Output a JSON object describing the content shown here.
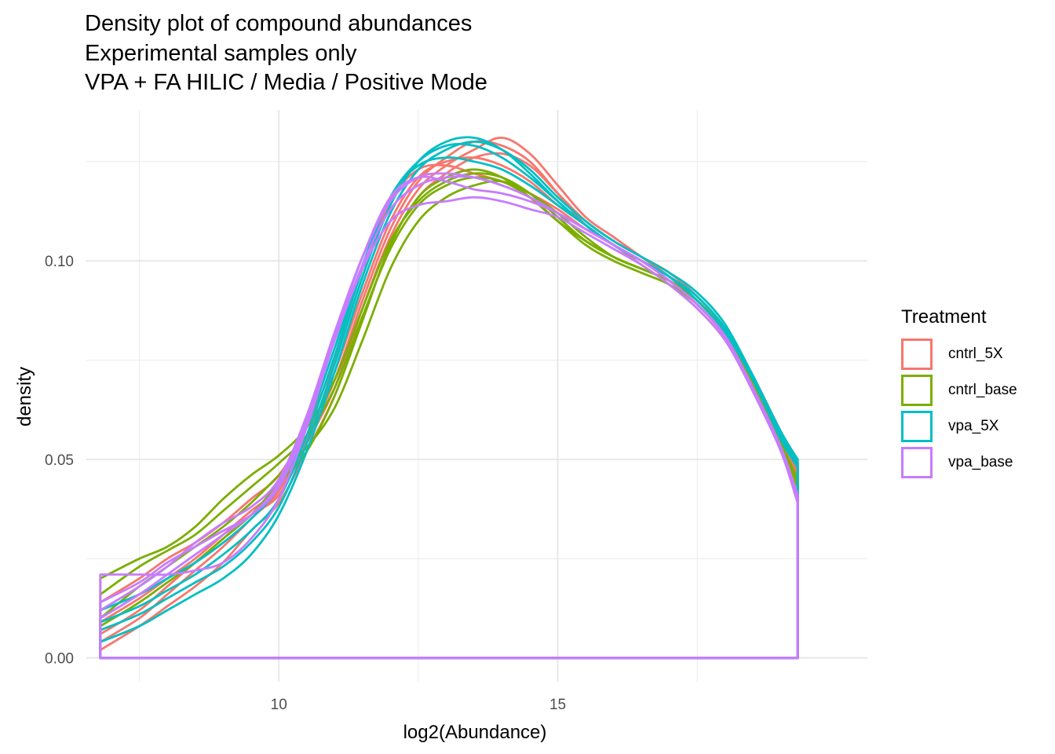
{
  "chart_data": {
    "type": "line",
    "title_lines": [
      "Density plot of compound abundances",
      "Experimental samples only",
      "VPA + FA HILIC / Media / Positive Mode"
    ],
    "xlabel": "log2(Abundance)",
    "ylabel": "density",
    "xlim": [
      6.55,
      20.55
    ],
    "ylim": [
      -0.006,
      0.138
    ],
    "x_ticks": [
      10,
      15
    ],
    "x_tick_labels": [
      "10",
      "15"
    ],
    "y_ticks": [
      0.0,
      0.05,
      0.1
    ],
    "y_tick_labels": [
      "0.00",
      "0.05",
      "0.10"
    ],
    "grid": true,
    "legend_position": "right",
    "legend": {
      "title": "Treatment",
      "items": [
        {
          "label": "cntrl_5X",
          "color": "#F8766D"
        },
        {
          "label": "cntrl_base",
          "color": "#7CAE00"
        },
        {
          "label": "vpa_5X",
          "color": "#00BFC4"
        },
        {
          "label": "vpa_base",
          "color": "#C77CFF"
        }
      ]
    },
    "x": [
      6.8,
      7.5,
      8.0,
      8.5,
      9.0,
      9.5,
      10.0,
      10.5,
      11.0,
      11.5,
      12.0,
      12.5,
      13.0,
      13.5,
      14.0,
      14.5,
      15.0,
      15.5,
      16.0,
      16.5,
      17.0,
      17.5,
      18.0,
      18.5,
      19.0,
      19.3
    ],
    "series": [
      {
        "group": "cntrl_5X",
        "values": [
          0.002,
          0.008,
          0.013,
          0.018,
          0.024,
          0.032,
          0.039,
          0.052,
          0.066,
          0.085,
          0.104,
          0.116,
          0.122,
          0.126,
          0.127,
          0.124,
          0.117,
          0.11,
          0.105,
          0.101,
          0.097,
          0.091,
          0.083,
          0.071,
          0.057,
          0.05
        ]
      },
      {
        "group": "cntrl_5X",
        "values": [
          0.004,
          0.01,
          0.016,
          0.022,
          0.028,
          0.035,
          0.042,
          0.055,
          0.07,
          0.09,
          0.108,
          0.12,
          0.126,
          0.13,
          0.129,
          0.125,
          0.117,
          0.109,
          0.104,
          0.1,
          0.095,
          0.089,
          0.081,
          0.069,
          0.055,
          0.048
        ]
      },
      {
        "group": "cntrl_5X",
        "values": [
          0.009,
          0.015,
          0.02,
          0.025,
          0.031,
          0.037,
          0.043,
          0.056,
          0.072,
          0.092,
          0.11,
          0.121,
          0.125,
          0.126,
          0.124,
          0.12,
          0.114,
          0.109,
          0.104,
          0.1,
          0.095,
          0.089,
          0.081,
          0.069,
          0.055,
          0.047
        ]
      },
      {
        "group": "cntrl_5X",
        "values": [
          0.014,
          0.02,
          0.025,
          0.029,
          0.034,
          0.04,
          0.046,
          0.058,
          0.075,
          0.096,
          0.115,
          0.123,
          0.124,
          0.122,
          0.12,
          0.117,
          0.113,
          0.108,
          0.104,
          0.099,
          0.094,
          0.088,
          0.08,
          0.068,
          0.054,
          0.046
        ]
      },
      {
        "group": "cntrl_5X",
        "values": [
          0.006,
          0.012,
          0.018,
          0.024,
          0.03,
          0.036,
          0.041,
          0.054,
          0.068,
          0.088,
          0.106,
          0.118,
          0.124,
          0.128,
          0.131,
          0.127,
          0.119,
          0.111,
          0.106,
          0.101,
          0.096,
          0.09,
          0.082,
          0.07,
          0.056,
          0.049
        ]
      },
      {
        "group": "cntrl_base",
        "values": [
          0.02,
          0.025,
          0.028,
          0.033,
          0.04,
          0.046,
          0.051,
          0.058,
          0.07,
          0.088,
          0.105,
          0.115,
          0.12,
          0.122,
          0.121,
          0.117,
          0.111,
          0.105,
          0.101,
          0.098,
          0.095,
          0.09,
          0.082,
          0.069,
          0.054,
          0.044
        ]
      },
      {
        "group": "cntrl_base",
        "values": [
          0.016,
          0.023,
          0.027,
          0.031,
          0.037,
          0.043,
          0.049,
          0.056,
          0.068,
          0.086,
          0.103,
          0.114,
          0.119,
          0.121,
          0.12,
          0.116,
          0.11,
          0.104,
          0.1,
          0.097,
          0.094,
          0.089,
          0.081,
          0.068,
          0.053,
          0.043
        ]
      },
      {
        "group": "cntrl_base",
        "values": [
          0.01,
          0.018,
          0.023,
          0.028,
          0.033,
          0.039,
          0.046,
          0.053,
          0.063,
          0.08,
          0.098,
          0.11,
          0.116,
          0.119,
          0.12,
          0.117,
          0.112,
          0.106,
          0.101,
          0.098,
          0.095,
          0.09,
          0.082,
          0.069,
          0.054,
          0.045
        ]
      },
      {
        "group": "cntrl_base",
        "values": [
          0.008,
          0.014,
          0.019,
          0.024,
          0.03,
          0.036,
          0.044,
          0.052,
          0.066,
          0.085,
          0.104,
          0.116,
          0.121,
          0.123,
          0.121,
          0.116,
          0.11,
          0.105,
          0.101,
          0.098,
          0.095,
          0.09,
          0.082,
          0.069,
          0.054,
          0.045
        ]
      },
      {
        "group": "vpa_5X",
        "values": [
          0.004,
          0.008,
          0.012,
          0.016,
          0.02,
          0.026,
          0.036,
          0.052,
          0.072,
          0.094,
          0.112,
          0.123,
          0.128,
          0.13,
          0.128,
          0.123,
          0.116,
          0.11,
          0.105,
          0.101,
          0.097,
          0.092,
          0.084,
          0.071,
          0.057,
          0.05
        ]
      },
      {
        "group": "vpa_5X",
        "values": [
          0.007,
          0.011,
          0.015,
          0.019,
          0.023,
          0.029,
          0.038,
          0.054,
          0.074,
          0.096,
          0.114,
          0.125,
          0.13,
          0.131,
          0.128,
          0.122,
          0.115,
          0.109,
          0.104,
          0.1,
          0.096,
          0.091,
          0.083,
          0.071,
          0.056,
          0.049
        ]
      },
      {
        "group": "vpa_5X",
        "values": [
          0.009,
          0.013,
          0.017,
          0.021,
          0.026,
          0.032,
          0.04,
          0.056,
          0.076,
          0.098,
          0.116,
          0.124,
          0.126,
          0.125,
          0.123,
          0.119,
          0.114,
          0.109,
          0.104,
          0.1,
          0.096,
          0.09,
          0.082,
          0.07,
          0.055,
          0.048
        ]
      },
      {
        "group": "vpa_5X",
        "values": [
          0.012,
          0.016,
          0.02,
          0.024,
          0.029,
          0.035,
          0.043,
          0.058,
          0.078,
          0.099,
          0.116,
          0.125,
          0.129,
          0.129,
          0.126,
          0.121,
          0.115,
          0.109,
          0.104,
          0.1,
          0.096,
          0.091,
          0.083,
          0.071,
          0.056,
          0.049
        ]
      },
      {
        "group": "vpa_base",
        "values": [
          0.021,
          0.021,
          0.021,
          0.022,
          0.024,
          0.03,
          0.04,
          0.058,
          0.08,
          0.098,
          0.11,
          0.114,
          0.115,
          0.116,
          0.115,
          0.113,
          0.111,
          0.107,
          0.103,
          0.099,
          0.094,
          0.088,
          0.08,
          0.067,
          0.052,
          0.039
        ]
      },
      {
        "group": "vpa_base",
        "values": [
          0.014,
          0.019,
          0.024,
          0.028,
          0.032,
          0.036,
          0.043,
          0.059,
          0.081,
          0.101,
          0.116,
          0.121,
          0.12,
          0.118,
          0.117,
          0.115,
          0.112,
          0.108,
          0.104,
          0.1,
          0.095,
          0.089,
          0.081,
          0.068,
          0.053,
          0.041
        ]
      },
      {
        "group": "vpa_base",
        "values": [
          0.012,
          0.018,
          0.023,
          0.029,
          0.034,
          0.038,
          0.045,
          0.061,
          0.082,
          0.101,
          0.115,
          0.121,
          0.122,
          0.121,
          0.119,
          0.116,
          0.112,
          0.108,
          0.104,
          0.1,
          0.095,
          0.089,
          0.081,
          0.068,
          0.053,
          0.041
        ]
      },
      {
        "group": "vpa_base",
        "values": [
          0.01,
          0.016,
          0.021,
          0.026,
          0.031,
          0.036,
          0.044,
          0.06,
          0.08,
          0.099,
          0.113,
          0.119,
          0.121,
          0.121,
          0.119,
          0.116,
          0.112,
          0.108,
          0.104,
          0.1,
          0.095,
          0.089,
          0.081,
          0.068,
          0.053,
          0.041
        ]
      }
    ]
  }
}
